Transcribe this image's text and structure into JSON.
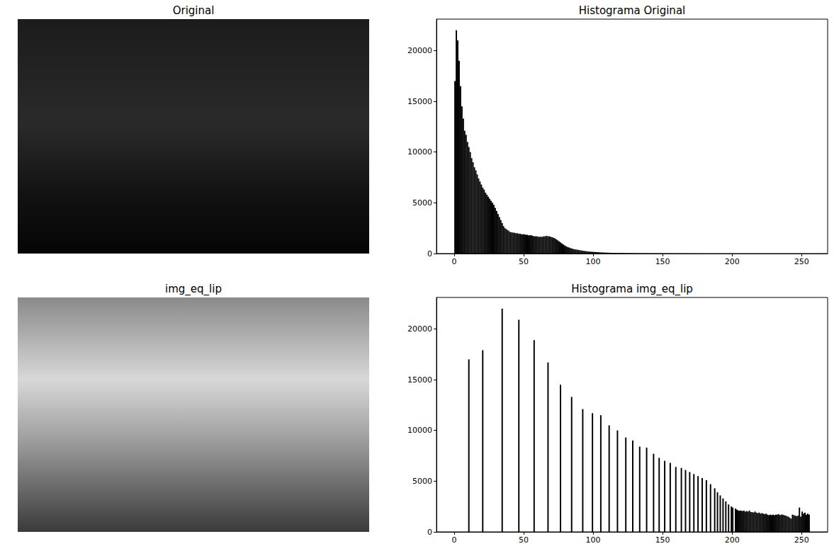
{
  "chart_data": [
    {
      "type": "image",
      "title": "Original",
      "tick_labels": false
    },
    {
      "type": "histogram",
      "title": "Histograma Original",
      "color": "#000000",
      "xlim": [
        -12.8,
        268.8
      ],
      "xticks": [
        0,
        50,
        100,
        150,
        200,
        250
      ],
      "ylim": [
        0,
        23100
      ],
      "yticks": [
        0,
        5000,
        10000,
        15000,
        20000
      ],
      "bins": [
        0,
        1,
        2,
        3,
        4,
        5,
        6,
        7,
        8,
        9,
        10,
        11,
        12,
        13,
        14,
        15,
        16,
        17,
        18,
        19,
        20,
        21,
        22,
        23,
        24,
        25,
        26,
        27,
        28,
        29,
        30,
        31,
        32,
        33,
        34,
        35,
        36,
        37,
        38,
        39,
        40,
        41,
        42,
        43,
        44,
        45,
        46,
        47,
        48,
        49,
        50,
        51,
        52,
        53,
        54,
        55,
        56,
        57,
        58,
        59,
        60,
        61,
        62,
        63,
        64,
        65,
        66,
        67,
        68,
        69,
        70,
        71,
        72,
        73,
        74,
        75,
        76,
        77,
        78,
        79,
        80,
        81,
        82,
        83,
        84,
        85,
        86,
        87,
        88,
        89,
        90,
        91,
        92,
        93,
        94,
        95,
        96,
        97,
        98,
        99,
        100,
        101,
        102,
        103,
        104,
        105,
        106,
        107,
        108,
        109,
        110,
        111,
        112,
        113,
        114,
        115,
        116,
        117,
        118,
        119,
        120,
        121,
        122,
        123,
        124,
        125,
        126,
        127,
        128,
        129,
        130,
        131,
        132,
        133,
        134,
        135,
        136,
        137,
        138,
        139,
        140,
        141,
        142,
        143,
        144,
        145,
        146,
        147,
        148,
        149,
        150,
        151,
        152,
        153,
        154,
        155,
        156,
        157,
        158,
        159,
        160,
        161,
        162,
        163,
        164,
        165,
        166,
        167,
        168,
        169,
        170,
        171,
        172,
        173,
        174,
        175,
        176,
        177,
        178,
        179,
        180,
        181,
        182,
        183,
        184,
        185,
        186,
        187,
        188,
        189,
        190,
        191,
        192,
        193,
        194,
        195,
        196,
        197,
        198,
        199,
        200,
        201,
        202,
        203,
        204,
        205,
        206,
        207,
        208,
        209,
        210,
        211,
        212,
        213,
        214,
        215,
        216,
        217,
        218,
        219,
        220,
        221,
        222,
        223,
        224,
        225,
        226,
        227,
        228,
        229,
        230,
        231,
        232,
        233,
        234,
        235,
        236,
        237,
        238,
        239,
        240,
        241,
        242,
        243,
        244,
        245,
        246,
        247,
        248,
        249,
        250,
        251,
        252,
        253,
        254,
        255,
        256
      ],
      "values": [
        17000,
        22000,
        21000,
        19000,
        16500,
        14500,
        13300,
        12100,
        11700,
        11000,
        10500,
        10000,
        9400,
        9000,
        8500,
        8200,
        7800,
        7400,
        7100,
        6800,
        6500,
        6300,
        6000,
        5800,
        5600,
        5400,
        5200,
        5000,
        4800,
        4500,
        4200,
        3900,
        3600,
        3300,
        3000,
        2700,
        2500,
        2400,
        2300,
        2200,
        2100,
        2100,
        2050,
        2050,
        2000,
        2000,
        1950,
        1950,
        1900,
        1900,
        1900,
        1850,
        1850,
        1800,
        1800,
        1800,
        1750,
        1700,
        1700,
        1700,
        1650,
        1650,
        1650,
        1650,
        1700,
        1700,
        1750,
        1700,
        1700,
        1650,
        1600,
        1550,
        1500,
        1400,
        1300,
        1200,
        1100,
        1000,
        900,
        800,
        720,
        650,
        600,
        550,
        500,
        460,
        420,
        400,
        380,
        350,
        330,
        300,
        280,
        260,
        240,
        220,
        200,
        190,
        180,
        170,
        160,
        150,
        140,
        130,
        120,
        110,
        105,
        100,
        95,
        90,
        85,
        80,
        75,
        70,
        65,
        60,
        58,
        55,
        52,
        50,
        48,
        46,
        44,
        42,
        40,
        38,
        36,
        34,
        32,
        30,
        29,
        28,
        27,
        26,
        25,
        24,
        23,
        22,
        21,
        20,
        20,
        19,
        18,
        18,
        17,
        17,
        16,
        16,
        15,
        15,
        14,
        14,
        13,
        13,
        12,
        12,
        11,
        11,
        10,
        10,
        9,
        9,
        8,
        8,
        7,
        7,
        6,
        6,
        5,
        5,
        5,
        4,
        4,
        4,
        3,
        3,
        2,
        2,
        1,
        1,
        0,
        0,
        0,
        0,
        0,
        0,
        0,
        0,
        0,
        0,
        0,
        0,
        0,
        0,
        0,
        0,
        0,
        0,
        0,
        0,
        0,
        0,
        0,
        0,
        0,
        0,
        0,
        0,
        0,
        0,
        0,
        0,
        0,
        0,
        0,
        0,
        0,
        0,
        0,
        0,
        0,
        0,
        0,
        0,
        0,
        0,
        0,
        0,
        0,
        0,
        0,
        0,
        0,
        0,
        0,
        0,
        0,
        0,
        0,
        0,
        0,
        0,
        0,
        0,
        0,
        0,
        0,
        0,
        0,
        0,
        0,
        0,
        0,
        0,
        0,
        0
      ]
    },
    {
      "type": "image",
      "title": "img_eq_lip",
      "tick_labels": false
    },
    {
      "type": "histogram",
      "title": "Histograma img_eq_lip",
      "color": "#000000",
      "xlim": [
        -12.8,
        268.8
      ],
      "xticks": [
        0,
        50,
        100,
        150,
        200,
        250
      ],
      "ylim": [
        0,
        23100
      ],
      "yticks": [
        0,
        5000,
        10000,
        15000,
        20000
      ],
      "bins": [
        0,
        1,
        2,
        3,
        4,
        5,
        6,
        7,
        8,
        9,
        10,
        11,
        12,
        13,
        14,
        15,
        16,
        17,
        18,
        19,
        20,
        21,
        22,
        23,
        24,
        25,
        26,
        27,
        28,
        29,
        30,
        31,
        32,
        33,
        34,
        35,
        36,
        37,
        38,
        39,
        40,
        41,
        42,
        43,
        44,
        45,
        46,
        47,
        48,
        49,
        50,
        51,
        52,
        53,
        54,
        55,
        56,
        57,
        58,
        59,
        60,
        61,
        62,
        63,
        64,
        65,
        66,
        67,
        68,
        69,
        70,
        71,
        72,
        73,
        74,
        75,
        76,
        77,
        78,
        79,
        80,
        81,
        82,
        83,
        84,
        85,
        86,
        87,
        88,
        89,
        90,
        91,
        92,
        93,
        94,
        95,
        96,
        97,
        98,
        99,
        100,
        101,
        102,
        103,
        104,
        105,
        106,
        107,
        108,
        109,
        110,
        111,
        112,
        113,
        114,
        115,
        116,
        117,
        118,
        119,
        120,
        121,
        122,
        123,
        124,
        125,
        126,
        127,
        128,
        129,
        130,
        131,
        132,
        133,
        134,
        135,
        136,
        137,
        138,
        139,
        140,
        141,
        142,
        143,
        144,
        145,
        146,
        147,
        148,
        149,
        150,
        151,
        152,
        153,
        154,
        155,
        156,
        157,
        158,
        159,
        160,
        161,
        162,
        163,
        164,
        165,
        166,
        167,
        168,
        169,
        170,
        171,
        172,
        173,
        174,
        175,
        176,
        177,
        178,
        179,
        180,
        181,
        182,
        183,
        184,
        185,
        186,
        187,
        188,
        189,
        190,
        191,
        192,
        193,
        194,
        195,
        196,
        197,
        198,
        199,
        200,
        201,
        202,
        203,
        204,
        205,
        206,
        207,
        208,
        209,
        210,
        211,
        212,
        213,
        214,
        215,
        216,
        217,
        218,
        219,
        220,
        221,
        222,
        223,
        224,
        225,
        226,
        227,
        228,
        229,
        230,
        231,
        232,
        233,
        234,
        235,
        236,
        237,
        238,
        239,
        240,
        241,
        242,
        243,
        244,
        245,
        246,
        247,
        248,
        249,
        250,
        251,
        252,
        253,
        254,
        255,
        256
      ],
      "values": [
        0,
        0,
        0,
        0,
        0,
        0,
        0,
        0,
        0,
        0,
        17000,
        0,
        0,
        0,
        0,
        0,
        0,
        0,
        0,
        0,
        17900,
        0,
        0,
        0,
        0,
        0,
        0,
        0,
        0,
        0,
        0,
        0,
        0,
        0,
        22000,
        0,
        0,
        0,
        0,
        0,
        0,
        0,
        0,
        0,
        0,
        0,
        20900,
        0,
        0,
        0,
        0,
        0,
        0,
        0,
        0,
        0,
        0,
        18900,
        0,
        0,
        0,
        0,
        0,
        0,
        0,
        0,
        0,
        16700,
        0,
        0,
        0,
        0,
        0,
        0,
        0,
        0,
        14500,
        0,
        0,
        0,
        0,
        0,
        0,
        0,
        13300,
        0,
        0,
        0,
        0,
        0,
        0,
        0,
        12100,
        0,
        0,
        0,
        0,
        0,
        0,
        11700,
        0,
        0,
        0,
        0,
        0,
        11500,
        0,
        0,
        0,
        0,
        0,
        10500,
        0,
        0,
        0,
        0,
        0,
        10000,
        0,
        0,
        0,
        0,
        0,
        9300,
        0,
        0,
        0,
        0,
        9000,
        0,
        0,
        0,
        0,
        8400,
        0,
        0,
        0,
        0,
        8300,
        0,
        0,
        0,
        0,
        7700,
        0,
        0,
        0,
        7300,
        0,
        0,
        0,
        7000,
        0,
        0,
        0,
        6800,
        0,
        0,
        0,
        6400,
        0,
        0,
        0,
        6300,
        0,
        0,
        6100,
        0,
        0,
        5900,
        0,
        0,
        5700,
        0,
        0,
        5500,
        0,
        0,
        5300,
        0,
        0,
        5100,
        0,
        0,
        4700,
        0,
        0,
        4300,
        0,
        3900,
        0,
        3600,
        0,
        3300,
        0,
        3000,
        0,
        2700,
        0,
        2500,
        2400,
        0,
        2300,
        2200,
        2100,
        2100,
        2100,
        2050,
        2100,
        2000,
        2050,
        2000,
        2100,
        1950,
        1950,
        1900,
        2000,
        1900,
        1850,
        1900,
        1800,
        1850,
        1800,
        1750,
        1800,
        1700,
        1650,
        1700,
        1650,
        1700,
        1650,
        1700,
        1700,
        1750,
        1650,
        1700,
        1700,
        1650,
        1600,
        1550,
        1500,
        1400,
        1300,
        1700,
        1650,
        1600,
        1550,
        1600,
        2400,
        1500,
        2000,
        1800,
        1900,
        1700,
        1800,
        1700
      ]
    }
  ]
}
